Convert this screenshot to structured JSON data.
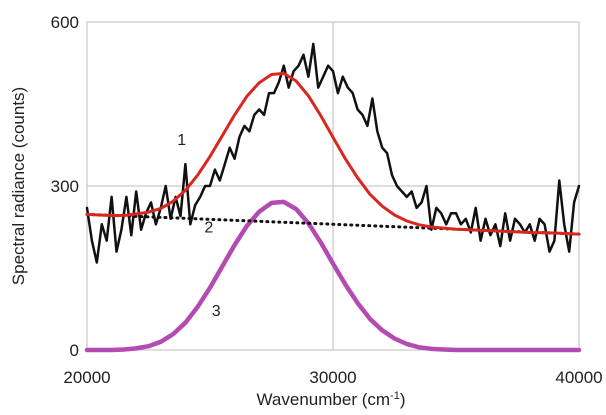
{
  "chart_data": {
    "type": "line",
    "xlabel": "Wavenumber (cm",
    "xlabel_sup": "-1",
    "xlabel_end": ")",
    "ylabel": "Spectral radiance (counts)",
    "xlim": [
      20000,
      40000
    ],
    "ylim": [
      0,
      600
    ],
    "x_ticks": [
      {
        "value": 20000,
        "label": "20000"
      },
      {
        "value": 30000,
        "label": "30000"
      },
      {
        "value": 40000,
        "label": "40000"
      }
    ],
    "y_ticks": [
      {
        "value": 0,
        "label": "0"
      },
      {
        "value": 300,
        "label": "300"
      },
      {
        "value": 600,
        "label": "600"
      }
    ],
    "grid": "x and y major gridlines at tick values",
    "series": [
      {
        "id": "1",
        "color": "#111111",
        "style": "solid",
        "x": [
          20000,
          20200,
          20400,
          20600,
          20800,
          21000,
          21200,
          21400,
          21600,
          21800,
          22000,
          22200,
          22400,
          22600,
          22800,
          23000,
          23200,
          23400,
          23600,
          23800,
          24000,
          24200,
          24400,
          24600,
          24800,
          25000,
          25200,
          25400,
          25600,
          25800,
          26000,
          26200,
          26400,
          26600,
          26800,
          27000,
          27200,
          27400,
          27600,
          27800,
          28000,
          28200,
          28400,
          28600,
          28800,
          29000,
          29200,
          29400,
          29600,
          29800,
          30000,
          30200,
          30400,
          30600,
          30800,
          31000,
          31200,
          31400,
          31600,
          31800,
          32000,
          32200,
          32400,
          32600,
          32800,
          33000,
          33200,
          33400,
          33600,
          33800,
          34000,
          34200,
          34400,
          34600,
          34800,
          35000,
          35200,
          35400,
          35600,
          35800,
          36000,
          36200,
          36400,
          36600,
          36800,
          37000,
          37200,
          37400,
          37600,
          37800,
          38000,
          38200,
          38400,
          38600,
          38800,
          39000,
          39200,
          39400,
          39600,
          39800,
          40000
        ],
        "y": [
          260,
          200,
          160,
          230,
          200,
          280,
          180,
          220,
          280,
          210,
          290,
          220,
          250,
          270,
          230,
          260,
          300,
          240,
          280,
          245,
          340,
          230,
          265,
          280,
          300,
          300,
          330,
          310,
          340,
          370,
          350,
          390,
          410,
          400,
          430,
          440,
          430,
          470,
          470,
          490,
          520,
          480,
          510,
          520,
          540,
          500,
          560,
          480,
          500,
          520,
          510,
          470,
          500,
          480,
          470,
          440,
          430,
          410,
          460,
          400,
          370,
          360,
          320,
          300,
          290,
          280,
          290,
          260,
          270,
          300,
          220,
          260,
          250,
          230,
          250,
          250,
          230,
          240,
          215,
          260,
          200,
          240,
          210,
          230,
          190,
          250,
          200,
          240,
          230,
          215,
          230,
          200,
          240,
          230,
          180,
          200,
          310,
          230,
          180,
          270,
          300
        ]
      },
      {
        "id": "2",
        "color": "#111111",
        "style": "dotted",
        "x": [
          20000,
          40000
        ],
        "y": [
          248,
          212
        ]
      },
      {
        "id": "3",
        "color": "#b34bb3",
        "style": "solid",
        "x": [
          20000,
          20500,
          21000,
          21500,
          22000,
          22500,
          23000,
          23500,
          24000,
          24500,
          25000,
          25500,
          26000,
          26500,
          27000,
          27500,
          28000,
          28500,
          29000,
          29500,
          30000,
          30500,
          31000,
          31500,
          32000,
          32500,
          33000,
          33500,
          34000,
          34500,
          35000,
          35500,
          36000,
          37000,
          38000,
          39000,
          40000
        ],
        "y": [
          0,
          0,
          0,
          1,
          3,
          7,
          15,
          29,
          50,
          79,
          114,
          153,
          192,
          227,
          253,
          269,
          271,
          258,
          232,
          197,
          158,
          120,
          86,
          57,
          36,
          21,
          11,
          5,
          2,
          1,
          0,
          0,
          0,
          0,
          0,
          0,
          0
        ]
      },
      {
        "id": "fit",
        "color": "#d9271f",
        "style": "solid",
        "x": [
          20000,
          20500,
          21000,
          21500,
          22000,
          22500,
          23000,
          23500,
          24000,
          24500,
          25000,
          25500,
          26000,
          26500,
          27000,
          27500,
          28000,
          28500,
          29000,
          29500,
          30000,
          30500,
          31000,
          31500,
          32000,
          32500,
          33000,
          33500,
          34000,
          34500,
          35000,
          35500,
          36000,
          37000,
          38000,
          39000,
          40000
        ],
        "y": [
          248,
          247,
          246,
          246,
          249,
          252,
          259,
          272,
          292,
          320,
          354,
          392,
          430,
          464,
          489,
          504,
          506,
          492,
          465,
          429,
          389,
          350,
          315,
          285,
          263,
          247,
          236,
          229,
          225,
          223,
          221,
          220,
          219,
          217,
          215,
          214,
          212
        ]
      }
    ],
    "annotations": [
      {
        "text": "1",
        "x": 23850,
        "y": 375
      },
      {
        "text": "2",
        "x": 24950,
        "y": 215
      },
      {
        "text": "3",
        "x": 25250,
        "y": 62
      }
    ]
  }
}
